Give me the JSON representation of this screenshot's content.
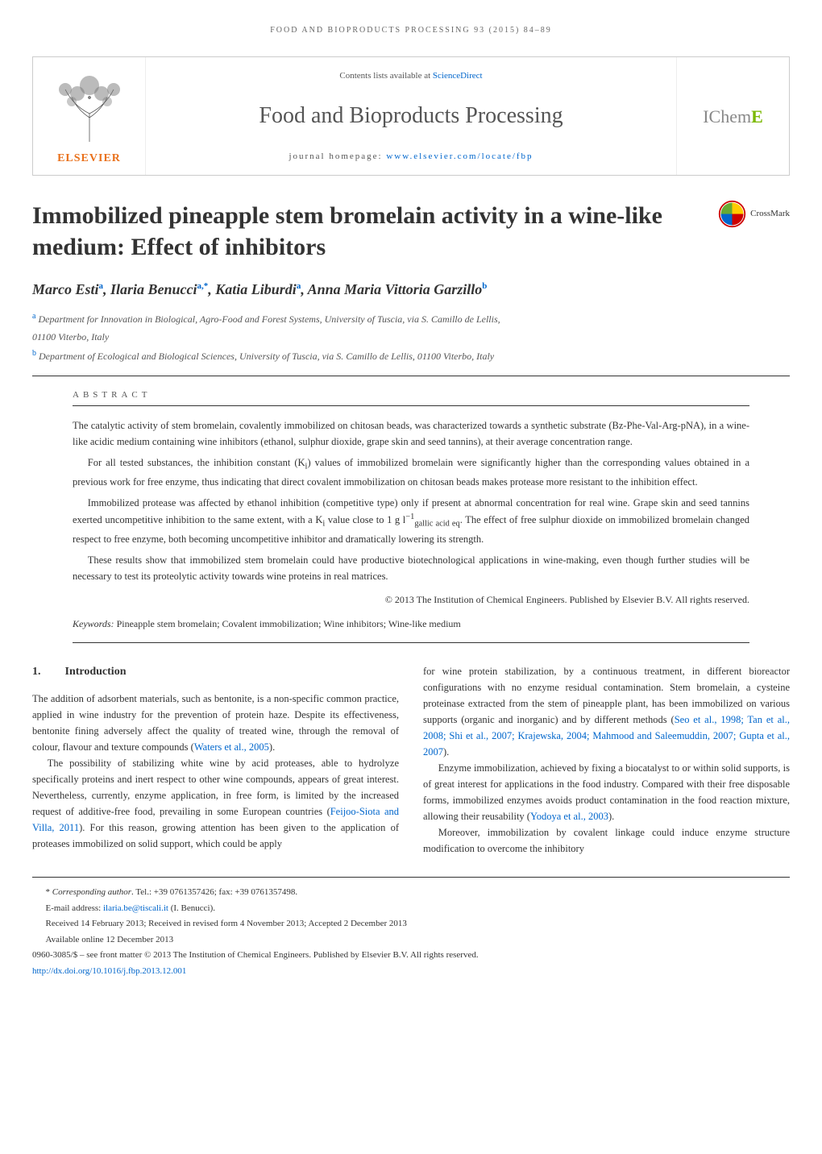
{
  "running_header": "FOOD AND BIOPRODUCTS PROCESSING 93 (2015) 84–89",
  "journal_box": {
    "elsevier_label": "ELSEVIER",
    "contents_text": "Contents lists available at ",
    "contents_link": "ScienceDirect",
    "journal_name": "Food and Bioproducts Processing",
    "homepage_label": "journal homepage: ",
    "homepage_url": "www.elsevier.com/locate/fbp",
    "icheme_prefix": "IChem",
    "icheme_suffix": "E"
  },
  "crossmark_label": "CrossMark",
  "article_title": "Immobilized pineapple stem bromelain activity in a wine-like medium: Effect of inhibitors",
  "authors_html": "Marco Esti<sup>a</sup>, Ilaria Benucci<sup>a,*</sup>, Katia Liburdi<sup>a</sup>, Anna Maria Vittoria Garzillo<sup>b</sup>",
  "affiliations": [
    "<sup>a</sup> Department for Innovation in Biological, Agro-Food and Forest Systems, University of Tuscia, via S. Camillo de Lellis,",
    "01100 Viterbo, Italy",
    "<sup>b</sup> Department of Ecological and Biological Sciences, University of Tuscia, via S. Camillo de Lellis, 01100 Viterbo, Italy"
  ],
  "abstract": {
    "label": "ABSTRACT",
    "paragraphs": [
      "The catalytic activity of stem bromelain, covalently immobilized on chitosan beads, was characterized towards a synthetic substrate (Bz-Phe-Val-Arg-pNA), in a wine-like acidic medium containing wine inhibitors (ethanol, sulphur dioxide, grape skin and seed tannins), at their average concentration range.",
      "For all tested substances, the inhibition constant (K<sub>i</sub>) values of immobilized bromelain were significantly higher than the corresponding values obtained in a previous work for free enzyme, thus indicating that direct covalent immobilization on chitosan beads makes protease more resistant to the inhibition effect.",
      "Immobilized protease was affected by ethanol inhibition (competitive type) only if present at abnormal concentration for real wine. Grape skin and seed tannins exerted uncompetitive inhibition to the same extent, with a K<sub>i</sub> value close to 1 g l<sup>−1</sup><sub>gallic acid eq</sub>. The effect of free sulphur dioxide on immobilized bromelain changed respect to free enzyme, both becoming uncompetitive inhibitor and dramatically lowering its strength.",
      "These results show that immobilized stem bromelain could have productive biotechnological applications in wine-making, even though further studies will be necessary to test its proteolytic activity towards wine proteins in real matrices."
    ],
    "copyright": "© 2013 The Institution of Chemical Engineers. Published by Elsevier B.V. All rights reserved.",
    "keywords_label": "Keywords:",
    "keywords": "Pineapple stem bromelain; Covalent immobilization; Wine inhibitors; Wine-like medium"
  },
  "section1": {
    "number": "1.",
    "title": "Introduction"
  },
  "body": {
    "left": [
      "The addition of adsorbent materials, such as bentonite, is a non-specific common practice, applied in wine industry for the prevention of protein haze. Despite its effectiveness, bentonite fining adversely affect the quality of treated wine, through the removal of colour, flavour and texture compounds (<span class=\"ref-link\">Waters et al., 2005</span>).",
      "The possibility of stabilizing white wine by acid proteases, able to hydrolyze specifically proteins and inert respect to other wine compounds, appears of great interest. Nevertheless, currently, enzyme application, in free form, is limited by the increased request of additive-free food, prevailing in some European countries (<span class=\"ref-link\">Feijoo-Siota and Villa, 2011</span>). For this reason, growing attention has been given to the application of proteases immobilized on solid support, which could be apply"
    ],
    "right": [
      "for wine protein stabilization, by a continuous treatment, in different bioreactor configurations with no enzyme residual contamination. Stem bromelain, a cysteine proteinase extracted from the stem of pineapple plant, has been immobilized on various supports (organic and inorganic) and by different methods (<span class=\"ref-link\">Seo et al., 1998; Tan et al., 2008; Shi et al., 2007; Krajewska, 2004; Mahmood and Saleemuddin, 2007; Gupta et al., 2007</span>).",
      "Enzyme immobilization, achieved by fixing a biocatalyst to or within solid supports, is of great interest for applications in the food industry. Compared with their free disposable forms, immobilized enzymes avoids product contamination in the food reaction mixture, allowing their reusability (<span class=\"ref-link\">Yodoya et al., 2003</span>).",
      "Moreover, immobilization by covalent linkage could induce enzyme structure modification to overcome the inhibitory"
    ]
  },
  "footer": {
    "corresponding": "* <em>Corresponding author</em>. Tel.: +39 0761357426; fax: +39 0761357498.",
    "email_label": "E-mail address: ",
    "email": "ilaria.be@tiscali.it",
    "email_attribution": " (I. Benucci).",
    "received": "Received 14 February 2013; Received in revised form 4 November 2013; Accepted 2 December 2013",
    "available": "Available online 12 December 2013",
    "issn": "0960-3085/$ – see front matter © 2013 The Institution of Chemical Engineers. Published by Elsevier B.V. All rights reserved.",
    "doi": "http://dx.doi.org/10.1016/j.fbp.2013.12.001"
  },
  "colors": {
    "link": "#0066cc",
    "elsevier_orange": "#e9711c",
    "icheme_green": "#7ab800",
    "text": "#333333",
    "muted": "#555555"
  }
}
